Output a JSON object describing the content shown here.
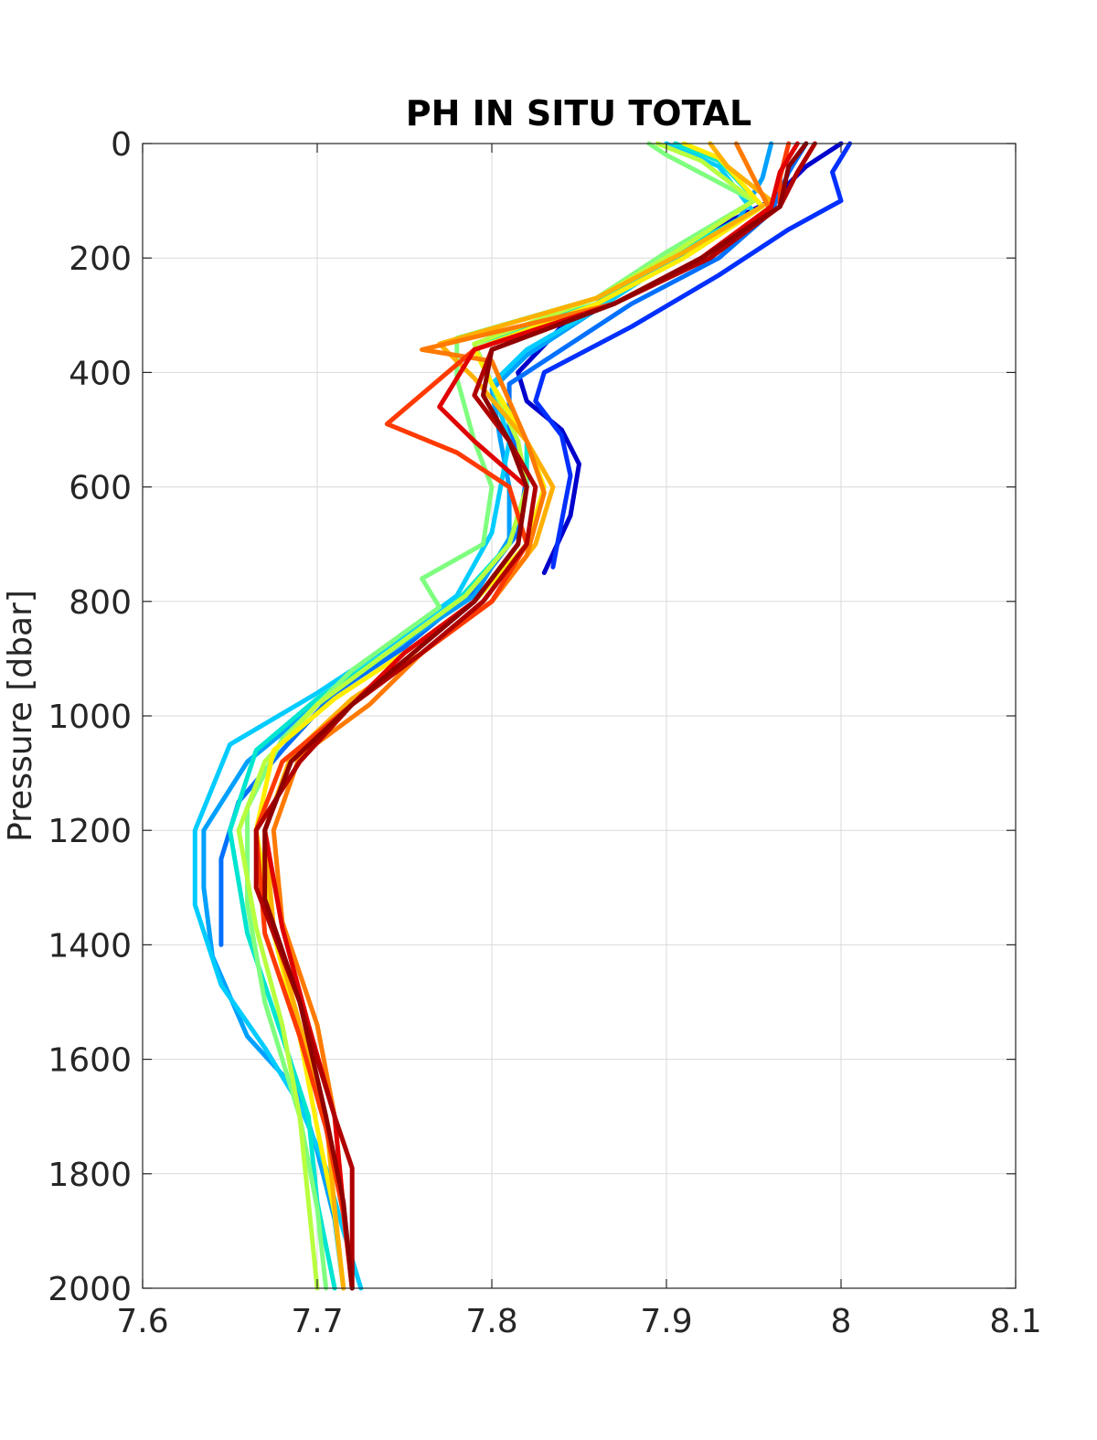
{
  "chart_data": {
    "type": "line",
    "title": "PH IN SITU TOTAL",
    "xlabel": "",
    "ylabel": "Pressure [dbar]",
    "xlim": [
      7.6,
      8.1
    ],
    "ylim": [
      0,
      2000
    ],
    "y_reversed": true,
    "grid": true,
    "legend": "none",
    "xticks": [
      "7.6",
      "7.7",
      "7.8",
      "7.9",
      "8",
      "8.1"
    ],
    "yticks": [
      "0",
      "200",
      "400",
      "600",
      "800",
      "1000",
      "1200",
      "1400",
      "1600",
      "1800",
      "2000"
    ],
    "series": [
      {
        "color": "#0000CC",
        "x": [
          8.0,
          7.98,
          7.96,
          7.92,
          7.88,
          7.84,
          7.815,
          7.82,
          7.84,
          7.85,
          7.845,
          7.83
        ],
        "y": [
          0,
          40,
          100,
          160,
          240,
          320,
          400,
          450,
          500,
          560,
          650,
          750
        ]
      },
      {
        "color": "#0030FF",
        "x": [
          8.005,
          7.995,
          8.0,
          7.97,
          7.93,
          7.88,
          7.83,
          7.825,
          7.84,
          7.845,
          7.84,
          7.835
        ],
        "y": [
          0,
          50,
          100,
          150,
          230,
          320,
          400,
          450,
          510,
          580,
          660,
          740
        ]
      },
      {
        "color": "#0070FF",
        "x": [
          7.98,
          7.97,
          7.96,
          7.93,
          7.88,
          7.84,
          7.81,
          7.81,
          7.82,
          7.815,
          7.79,
          7.75,
          7.71,
          7.68,
          7.655,
          7.645,
          7.645
        ],
        "y": [
          0,
          50,
          120,
          200,
          280,
          360,
          420,
          500,
          580,
          680,
          780,
          880,
          960,
          1060,
          1150,
          1250,
          1400
        ]
      },
      {
        "color": "#00A0FF",
        "x": [
          7.96,
          7.955,
          7.94,
          7.9,
          7.86,
          7.82,
          7.8,
          7.805,
          7.81,
          7.81,
          7.79,
          7.74,
          7.7,
          7.66,
          7.635,
          7.635,
          7.64,
          7.66,
          7.69,
          7.7,
          7.71,
          7.715
        ],
        "y": [
          0,
          60,
          140,
          210,
          290,
          370,
          430,
          520,
          600,
          690,
          790,
          890,
          980,
          1080,
          1200,
          1300,
          1420,
          1560,
          1660,
          1760,
          1880,
          2000
        ]
      },
      {
        "color": "#00CCFF",
        "x": [
          7.9,
          7.93,
          7.95,
          7.9,
          7.86,
          7.82,
          7.8,
          7.81,
          7.805,
          7.8,
          7.78,
          7.74,
          7.7,
          7.65,
          7.63,
          7.63,
          7.645,
          7.67,
          7.69,
          7.705,
          7.715,
          7.725
        ],
        "y": [
          0,
          40,
          120,
          210,
          290,
          360,
          420,
          520,
          600,
          680,
          790,
          880,
          960,
          1050,
          1200,
          1330,
          1470,
          1580,
          1680,
          1790,
          1900,
          2000
        ]
      },
      {
        "color": "#00E5D0",
        "x": [
          7.905,
          7.93,
          7.955,
          7.9,
          7.86,
          7.79,
          7.8,
          7.82,
          7.82,
          7.81,
          7.78,
          7.74,
          7.7,
          7.665,
          7.65,
          7.66,
          7.68,
          7.695,
          7.7,
          7.71
        ],
        "y": [
          0,
          30,
          110,
          200,
          280,
          350,
          420,
          520,
          600,
          700,
          800,
          890,
          970,
          1060,
          1200,
          1380,
          1560,
          1700,
          1850,
          2000
        ]
      },
      {
        "color": "#7FFF7F",
        "x": [
          7.89,
          7.9,
          7.95,
          7.9,
          7.86,
          7.78,
          7.78,
          7.79,
          7.8,
          7.795,
          7.76,
          7.77,
          7.72,
          7.68,
          7.66,
          7.66,
          7.67,
          7.69,
          7.7,
          7.705
        ],
        "y": [
          0,
          20,
          100,
          190,
          270,
          340,
          410,
          520,
          600,
          700,
          760,
          810,
          920,
          1040,
          1160,
          1330,
          1500,
          1700,
          1860,
          2000
        ]
      },
      {
        "color": "#B8FF40",
        "x": [
          7.895,
          7.92,
          7.95,
          7.905,
          7.86,
          7.79,
          7.8,
          7.815,
          7.82,
          7.81,
          7.785,
          7.74,
          7.7,
          7.67,
          7.655,
          7.665,
          7.68,
          7.69,
          7.695,
          7.7
        ],
        "y": [
          0,
          30,
          100,
          190,
          270,
          350,
          420,
          520,
          600,
          700,
          790,
          890,
          980,
          1080,
          1200,
          1370,
          1540,
          1700,
          1850,
          2000
        ]
      },
      {
        "color": "#FFEE00",
        "x": [
          7.91,
          7.93,
          7.955,
          7.91,
          7.86,
          7.79,
          7.8,
          7.82,
          7.83,
          7.82,
          7.79,
          7.75,
          7.71,
          7.675,
          7.665,
          7.675,
          7.69,
          7.7,
          7.71,
          7.715
        ],
        "y": [
          0,
          25,
          110,
          200,
          280,
          360,
          420,
          520,
          600,
          700,
          800,
          890,
          970,
          1060,
          1200,
          1380,
          1560,
          1720,
          1870,
          2000
        ]
      },
      {
        "color": "#FFB000",
        "x": [
          7.925,
          7.935,
          7.96,
          7.91,
          7.86,
          7.77,
          7.79,
          7.82,
          7.835,
          7.825,
          7.8,
          7.76,
          7.72,
          7.685,
          7.67,
          7.675,
          7.69,
          7.705,
          7.71,
          7.715
        ],
        "y": [
          0,
          40,
          100,
          190,
          270,
          350,
          410,
          520,
          600,
          700,
          800,
          890,
          970,
          1070,
          1200,
          1370,
          1540,
          1700,
          1860,
          2000
        ]
      },
      {
        "color": "#FF7A00",
        "x": [
          7.94,
          7.95,
          7.96,
          7.92,
          7.87,
          7.76,
          7.8,
          7.82,
          7.83,
          7.82,
          7.8,
          7.76,
          7.73,
          7.69,
          7.675,
          7.68,
          7.7,
          7.71,
          7.715,
          7.72
        ],
        "y": [
          0,
          60,
          120,
          200,
          280,
          360,
          380,
          520,
          610,
          720,
          800,
          890,
          980,
          1070,
          1200,
          1360,
          1540,
          1700,
          1860,
          2000
        ]
      },
      {
        "color": "#FF3A00",
        "x": [
          7.97,
          7.965,
          7.965,
          7.92,
          7.87,
          7.79,
          7.74,
          7.78,
          7.81,
          7.82,
          7.8,
          7.76,
          7.72,
          7.68,
          7.665,
          7.67,
          7.69,
          7.705,
          7.715,
          7.72
        ],
        "y": [
          0,
          60,
          110,
          200,
          280,
          360,
          490,
          540,
          600,
          700,
          800,
          890,
          980,
          1080,
          1200,
          1380,
          1560,
          1720,
          1870,
          2000
        ]
      },
      {
        "color": "#E00000",
        "x": [
          7.975,
          7.965,
          7.96,
          7.92,
          7.87,
          7.79,
          7.77,
          7.79,
          7.82,
          7.815,
          7.79,
          7.75,
          7.72,
          7.685,
          7.67,
          7.68,
          7.695,
          7.71,
          7.715,
          7.72
        ],
        "y": [
          0,
          50,
          110,
          200,
          280,
          360,
          460,
          520,
          600,
          700,
          800,
          890,
          980,
          1080,
          1200,
          1370,
          1540,
          1700,
          1860,
          2000
        ]
      },
      {
        "color": "#B00000",
        "x": [
          7.985,
          7.975,
          7.965,
          7.925,
          7.87,
          7.8,
          7.79,
          7.81,
          7.825,
          7.82,
          7.795,
          7.76,
          7.72,
          7.69,
          7.665,
          7.665,
          7.69,
          7.71,
          7.72,
          7.72,
          7.72
        ],
        "y": [
          0,
          50,
          110,
          200,
          280,
          360,
          440,
          520,
          600,
          700,
          800,
          890,
          980,
          1080,
          1200,
          1300,
          1500,
          1700,
          1790,
          1880,
          2000
        ]
      },
      {
        "color": "#900000",
        "x": [
          7.98,
          7.97,
          7.965,
          7.92,
          7.87,
          7.8,
          7.795,
          7.81,
          7.82,
          7.815,
          7.79,
          7.755,
          7.72,
          7.685,
          7.67,
          7.67,
          7.69,
          7.705,
          7.715,
          7.72
        ],
        "y": [
          0,
          40,
          110,
          200,
          280,
          360,
          440,
          520,
          600,
          700,
          800,
          890,
          980,
          1080,
          1200,
          1320,
          1500,
          1700,
          1850,
          2000
        ]
      }
    ]
  }
}
